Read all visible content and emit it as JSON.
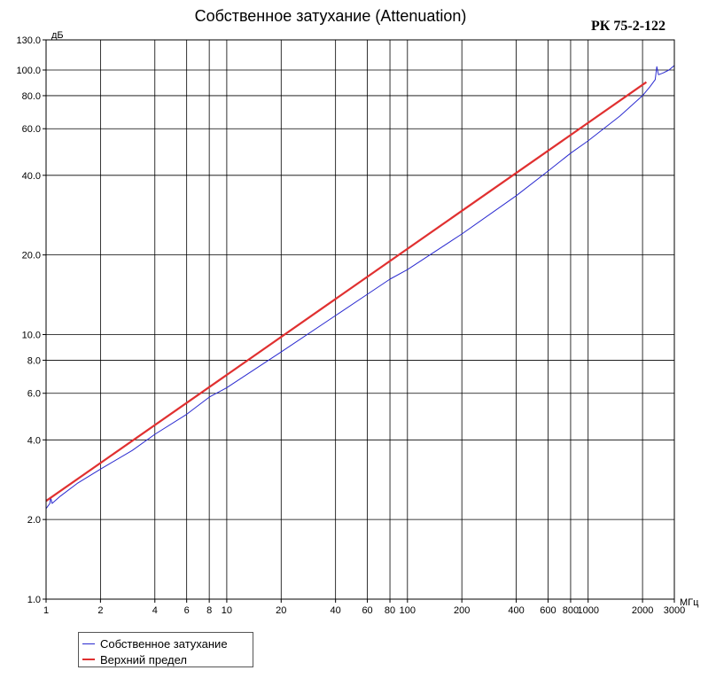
{
  "chart_data": {
    "type": "line",
    "title": "Собственное затухание (Attenuation)",
    "tag": "РК 75-2-122",
    "x_unit": "МГц",
    "y_unit": "дБ",
    "x_scale": "log",
    "y_scale": "log",
    "xlim": [
      1,
      3000
    ],
    "ylim": [
      1.0,
      130.0
    ],
    "grid": true,
    "legend_position": "bottom-left",
    "x_ticks": [
      1,
      2,
      4,
      6,
      8,
      10,
      20,
      40,
      60,
      80,
      100,
      200,
      400,
      600,
      800,
      1000,
      2000,
      3000
    ],
    "x_tick_labels": [
      "1",
      "2",
      "4",
      "6",
      "8",
      "10",
      "20",
      "40",
      "60",
      "80",
      "100",
      "200",
      "400",
      "600",
      "800",
      "1000",
      "2000",
      "3000"
    ],
    "y_ticks": [
      1.0,
      2.0,
      4.0,
      6.0,
      8.0,
      10.0,
      20.0,
      40.0,
      60.0,
      80.0,
      100.0,
      130.0
    ],
    "y_tick_labels": [
      "1.0",
      "2.0",
      "4.0",
      "6.0",
      "8.0",
      "10.0",
      "20.0",
      "40.0",
      "60.0",
      "80.0",
      "100.0",
      "130.0"
    ],
    "series": [
      {
        "name": "Собственное затухание",
        "color": "#2a2ad0",
        "x": [
          1,
          1.05,
          1.06,
          1.08,
          1.2,
          1.5,
          2,
          3,
          4,
          6,
          8,
          10,
          20,
          40,
          60,
          80,
          100,
          200,
          400,
          600,
          800,
          1000,
          1500,
          2000,
          2200,
          2350,
          2400,
          2450,
          2600,
          2800,
          3000
        ],
        "y": [
          2.2,
          2.3,
          2.42,
          2.3,
          2.45,
          2.75,
          3.1,
          3.65,
          4.2,
          5.0,
          5.8,
          6.3,
          8.6,
          11.8,
          14.2,
          16.2,
          17.6,
          24.0,
          33.5,
          41.5,
          48.5,
          54.0,
          67.0,
          80.0,
          86.5,
          92.0,
          103.0,
          96.0,
          97.5,
          100.0,
          104.0
        ]
      },
      {
        "name": "Верхний предел",
        "color": "#e03030",
        "x": [
          1,
          2100
        ],
        "y": [
          2.35,
          90.0
        ]
      }
    ]
  }
}
